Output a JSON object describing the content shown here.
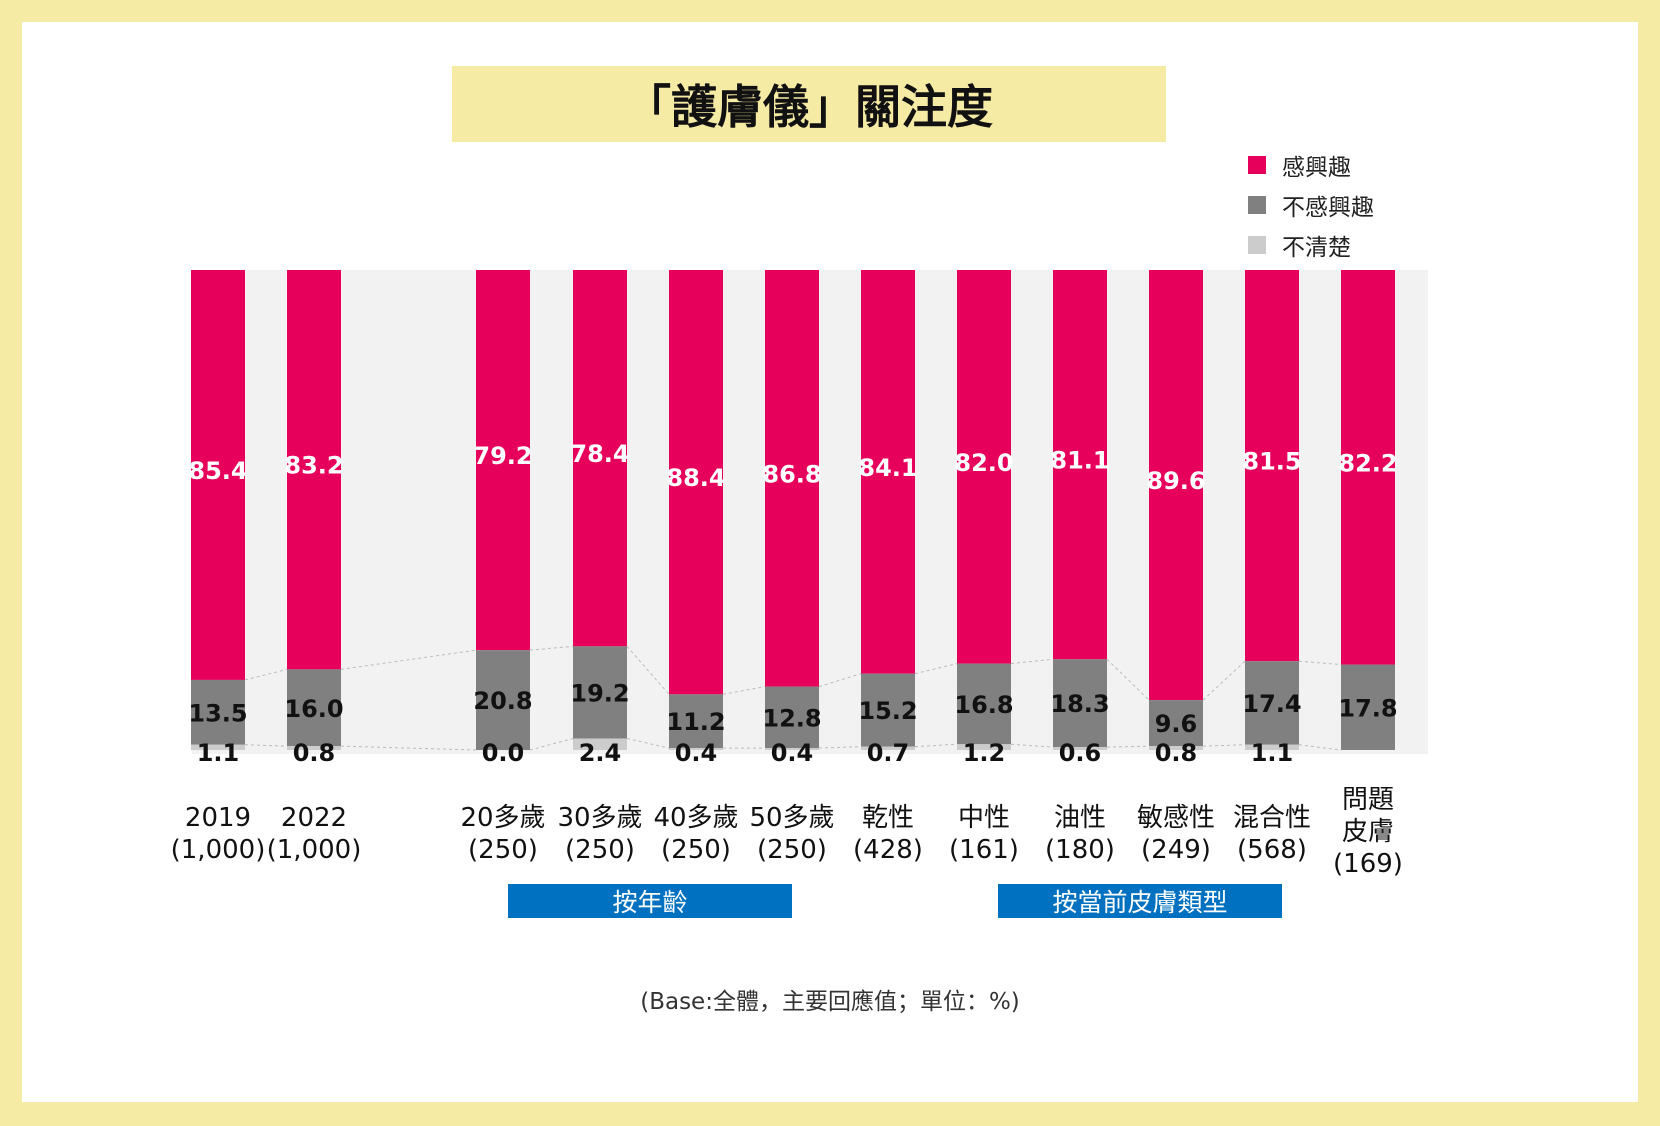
{
  "title": "「護膚儀」關注度",
  "footnote": "(Base:全體，主要回應值；單位：%)",
  "colors": {
    "interested": "#E6005C",
    "not_interested": "#808080",
    "unclear": "#CCCCCC",
    "banner": "#0070C0",
    "frame": "#F6EBA5"
  },
  "legend": [
    {
      "label": "感興趣",
      "color": "#E6005C"
    },
    {
      "label": "不感興趣",
      "color": "#808080"
    },
    {
      "label": "不清楚",
      "color": "#CCCCCC"
    }
  ],
  "groups": [
    {
      "label": "按年齡"
    },
    {
      "label": "按當前皮膚類型"
    }
  ],
  "chart_data": {
    "type": "bar",
    "stacked": true,
    "categories": [
      "2019\n(1,000)",
      "2022\n(1,000)",
      "20多歲\n(250)",
      "30多歲\n(250)",
      "40多歲\n(250)",
      "50多歲\n(250)",
      "乾性\n(428)",
      "中性\n(161)",
      "油性\n(180)",
      "敏感性\n(249)",
      "混合性\n(568)",
      "問題\n皮膚\n(169)"
    ],
    "series": [
      {
        "name": "感興趣",
        "values": [
          85.4,
          83.2,
          79.2,
          78.4,
          88.4,
          86.8,
          84.1,
          82.0,
          81.1,
          89.6,
          81.5,
          82.2
        ]
      },
      {
        "name": "不感興趣",
        "values": [
          13.5,
          16.0,
          20.8,
          19.2,
          11.2,
          12.8,
          15.2,
          16.8,
          18.3,
          9.6,
          17.4,
          17.8
        ]
      },
      {
        "name": "不清楚",
        "values": [
          1.1,
          0.8,
          0.0,
          2.4,
          0.4,
          0.4,
          0.7,
          1.2,
          0.6,
          0.8,
          1.1,
          null
        ]
      }
    ],
    "ylim": [
      0,
      100
    ],
    "grid": false,
    "legend_position": "top-right"
  }
}
